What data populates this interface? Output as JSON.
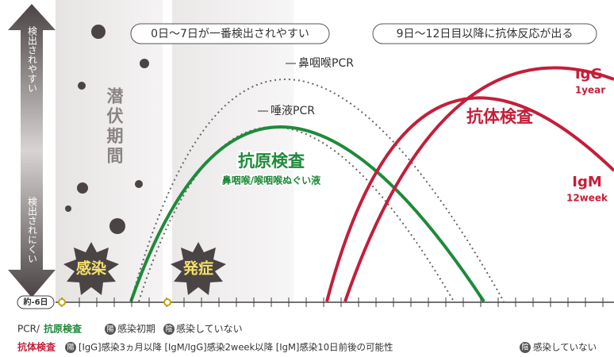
{
  "side": {
    "top": "検出されやすい",
    "bottom": "検出されにくい"
  },
  "axis": {
    "start": "約-6日"
  },
  "banners": [
    "0日〜7日が一番検出されやすい",
    "9日〜12日目以降に抗体反応が出る"
  ],
  "latent": "潜伏期間",
  "curves": {
    "nasal_pcr": "鼻咽喉PCR",
    "saliva_pcr": "唾液PCR",
    "antigen": "抗原検査",
    "antigen_sub": "鼻咽喉/喉咽喉ぬぐい液",
    "antibody": "抗体検査",
    "igg": "IgG",
    "igg_sub": "1year",
    "igm": "IgM",
    "igm_sub": "12week"
  },
  "badges": [
    "感染",
    "発症"
  ],
  "legend": {
    "row1": {
      "prefix": "PCR/",
      "name": "抗原検査",
      "pos": "陽",
      "pos_text": "感染初期",
      "neg": "陰",
      "neg_text": "感染していない"
    },
    "row2": {
      "name": "抗体検査",
      "pos": "陽",
      "pos_text": "[IgG]感染3ヵ月以降 [IgM/IgG]感染2week以降 [IgM]感染10日前後の可能性",
      "neg": "陰",
      "neg_text": "感染していない"
    }
  }
}
